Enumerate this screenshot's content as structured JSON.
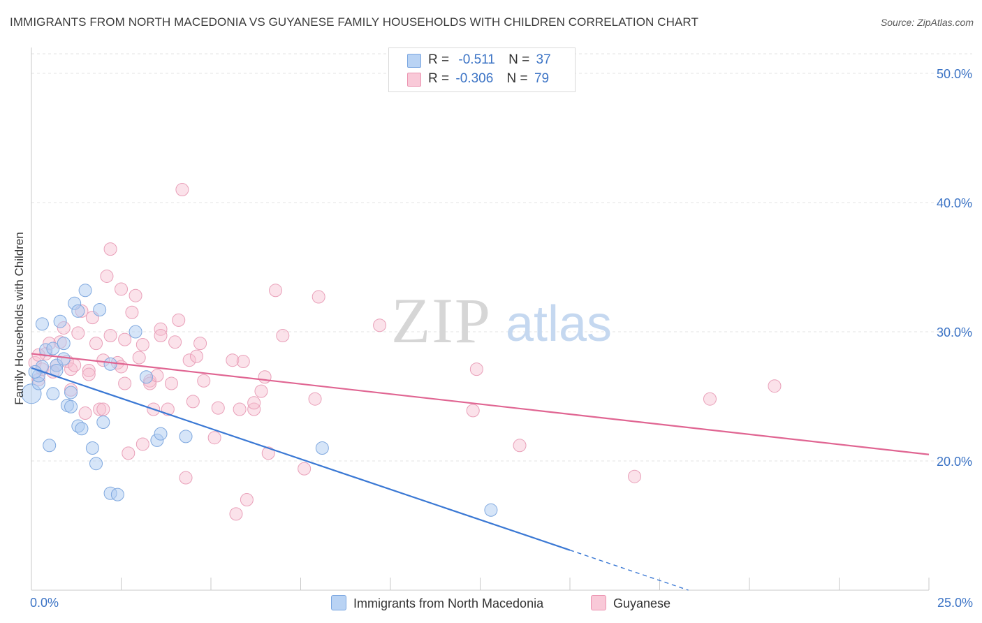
{
  "title": "IMMIGRANTS FROM NORTH MACEDONIA VS GUYANESE FAMILY HOUSEHOLDS WITH CHILDREN CORRELATION CHART",
  "source": "Source: ZipAtlas.com",
  "watermark": {
    "zip": "ZIP",
    "atlas": "atlas"
  },
  "legend": {
    "rows": [
      {
        "r_label": "R =",
        "r_value": "-0.511",
        "n_label": "N =",
        "n_value": "37",
        "color": "#a9c8f0"
      },
      {
        "r_label": "R =",
        "r_value": "-0.306",
        "n_label": "N =",
        "n_value": "79",
        "color": "#f6b9cc"
      }
    ]
  },
  "bottom_legend": [
    "Immigrants from North Macedonia",
    "Guyanese"
  ],
  "colors": {
    "blue": "#3a78d4",
    "blue_fill": "#aecbf2",
    "pink": "#e06592",
    "pink_fill": "#f7bfd0",
    "grid": "#e3e3e3",
    "axis_text": "#3b73c5"
  },
  "chart_data": {
    "type": "scatter",
    "xlabel": "",
    "ylabel": "Family Households with Children",
    "xlim": [
      0,
      25
    ],
    "ylim": [
      10,
      52
    ],
    "x_tick_labels": [
      "0.0%",
      "25.0%"
    ],
    "y_ticks": [
      20,
      30,
      40,
      50
    ],
    "y_tick_labels": [
      "20.0%",
      "30.0%",
      "40.0%",
      "50.0%"
    ],
    "grid": true,
    "series": [
      {
        "name": "Immigrants from North Macedonia",
        "color": "#3a78d4",
        "points": [
          [
            0.0,
            25.2
          ],
          [
            0.2,
            26.0
          ],
          [
            0.2,
            26.6
          ],
          [
            0.3,
            27.3
          ],
          [
            0.3,
            30.6
          ],
          [
            0.4,
            28.6
          ],
          [
            0.5,
            21.2
          ],
          [
            0.6,
            25.2
          ],
          [
            0.6,
            28.7
          ],
          [
            0.7,
            27.4
          ],
          [
            0.7,
            27.0
          ],
          [
            0.8,
            30.8
          ],
          [
            0.9,
            27.9
          ],
          [
            0.9,
            29.1
          ],
          [
            1.0,
            24.3
          ],
          [
            1.1,
            24.2
          ],
          [
            1.1,
            25.3
          ],
          [
            1.2,
            32.2
          ],
          [
            1.3,
            31.6
          ],
          [
            1.3,
            22.7
          ],
          [
            1.4,
            22.5
          ],
          [
            1.5,
            33.2
          ],
          [
            1.7,
            21.0
          ],
          [
            1.8,
            19.8
          ],
          [
            1.9,
            31.7
          ],
          [
            2.0,
            23.0
          ],
          [
            2.2,
            27.5
          ],
          [
            2.2,
            17.5
          ],
          [
            2.4,
            17.4
          ],
          [
            2.9,
            30.0
          ],
          [
            3.2,
            26.5
          ],
          [
            3.5,
            21.6
          ],
          [
            3.6,
            22.1
          ],
          [
            4.3,
            21.9
          ],
          [
            8.1,
            21.0
          ],
          [
            12.8,
            16.2
          ],
          [
            0.1,
            26.9
          ]
        ],
        "trend": {
          "x": [
            0,
            15
          ],
          "y": [
            27.2,
            13.1
          ]
        },
        "trend_dashed": {
          "x": [
            15,
            18.3
          ],
          "y": [
            13.1,
            10.0
          ]
        }
      },
      {
        "name": "Guyanese",
        "color": "#e06592",
        "points": [
          [
            0.1,
            27.6
          ],
          [
            0.2,
            26.3
          ],
          [
            0.3,
            27.1
          ],
          [
            0.4,
            28.3
          ],
          [
            0.5,
            29.1
          ],
          [
            0.6,
            26.9
          ],
          [
            0.7,
            27.4
          ],
          [
            0.8,
            29.2
          ],
          [
            0.9,
            30.3
          ],
          [
            1.0,
            27.7
          ],
          [
            1.1,
            27.1
          ],
          [
            1.1,
            25.5
          ],
          [
            1.2,
            27.4
          ],
          [
            1.3,
            29.9
          ],
          [
            1.4,
            31.6
          ],
          [
            1.5,
            23.7
          ],
          [
            1.6,
            27.0
          ],
          [
            1.6,
            26.7
          ],
          [
            1.7,
            31.1
          ],
          [
            1.8,
            29.1
          ],
          [
            1.9,
            24.0
          ],
          [
            2.0,
            27.8
          ],
          [
            2.1,
            34.3
          ],
          [
            2.2,
            29.7
          ],
          [
            2.2,
            36.4
          ],
          [
            2.4,
            27.6
          ],
          [
            2.5,
            27.3
          ],
          [
            2.5,
            33.3
          ],
          [
            2.6,
            29.4
          ],
          [
            2.6,
            26.0
          ],
          [
            2.7,
            20.6
          ],
          [
            2.8,
            31.5
          ],
          [
            2.9,
            32.8
          ],
          [
            3.0,
            28.0
          ],
          [
            3.1,
            29.0
          ],
          [
            3.1,
            21.3
          ],
          [
            3.3,
            26.2
          ],
          [
            3.3,
            26.0
          ],
          [
            3.4,
            24.0
          ],
          [
            3.5,
            26.6
          ],
          [
            3.6,
            30.2
          ],
          [
            3.6,
            29.7
          ],
          [
            3.8,
            24.0
          ],
          [
            3.9,
            26.0
          ],
          [
            4.0,
            29.2
          ],
          [
            4.1,
            30.9
          ],
          [
            4.2,
            41.0
          ],
          [
            4.3,
            18.7
          ],
          [
            4.4,
            27.8
          ],
          [
            4.5,
            24.6
          ],
          [
            4.6,
            28.1
          ],
          [
            4.7,
            29.1
          ],
          [
            4.8,
            26.2
          ],
          [
            5.1,
            21.8
          ],
          [
            5.2,
            24.1
          ],
          [
            5.6,
            27.8
          ],
          [
            5.7,
            15.9
          ],
          [
            5.8,
            24.0
          ],
          [
            5.9,
            27.7
          ],
          [
            6.0,
            17.0
          ],
          [
            6.2,
            24.0
          ],
          [
            6.2,
            24.5
          ],
          [
            6.4,
            25.4
          ],
          [
            6.5,
            26.5
          ],
          [
            6.6,
            20.6
          ],
          [
            6.8,
            33.2
          ],
          [
            7.0,
            29.7
          ],
          [
            7.6,
            19.4
          ],
          [
            7.9,
            24.8
          ],
          [
            8.0,
            32.7
          ],
          [
            9.7,
            30.5
          ],
          [
            12.3,
            23.9
          ],
          [
            12.4,
            27.1
          ],
          [
            13.6,
            21.2
          ],
          [
            16.8,
            18.8
          ],
          [
            18.9,
            24.8
          ],
          [
            20.7,
            25.8
          ],
          [
            0.2,
            28.2
          ],
          [
            2.0,
            24.0
          ]
        ],
        "trend": {
          "x": [
            0,
            25
          ],
          "y": [
            28.3,
            20.5
          ]
        }
      }
    ]
  }
}
